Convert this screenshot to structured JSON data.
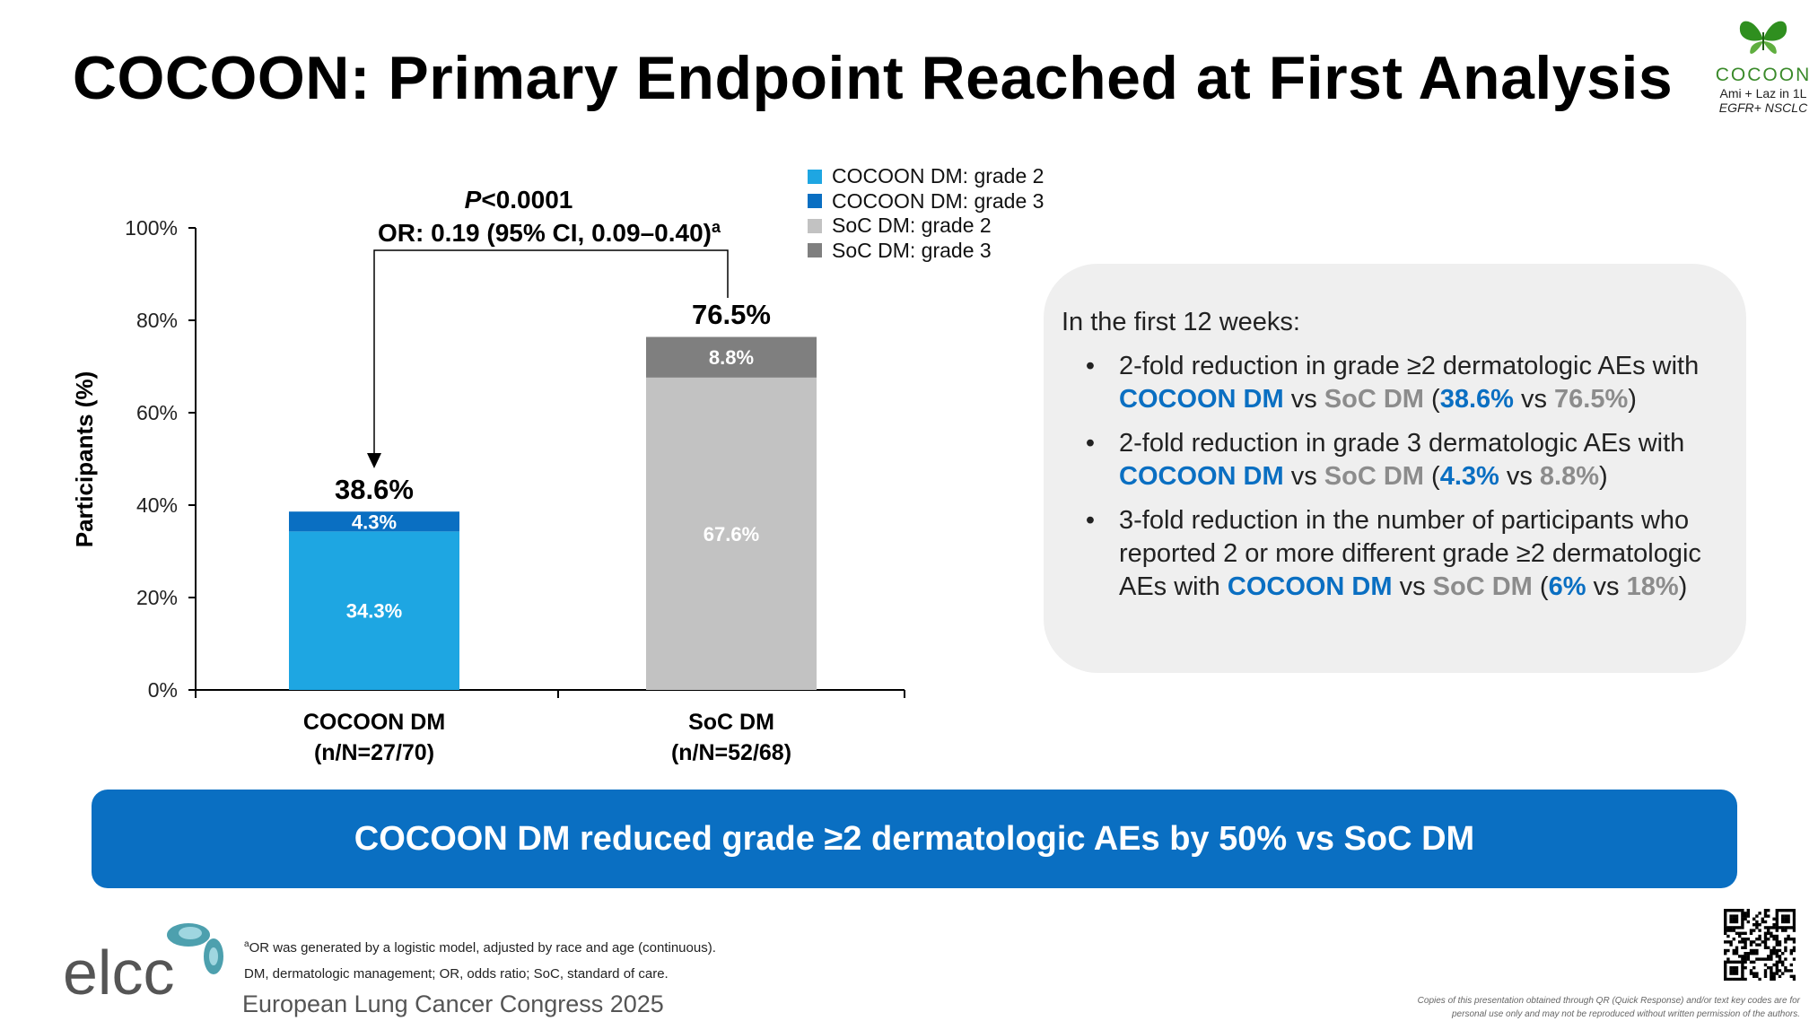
{
  "title": "COCOON: Primary Endpoint Reached at First Analysis",
  "logo": {
    "brand": "COCOON",
    "sub1": "Ami + Laz in 1L",
    "sub2": "EGFR+ NSCLC",
    "leaf_color": "#2f8f1f"
  },
  "chart_data": {
    "type": "bar",
    "stacked": true,
    "categories": [
      "COCOON DM",
      "SoC DM"
    ],
    "category_sublabels": [
      "(n/N=27/70)",
      "(n/N=52/68)"
    ],
    "series": [
      {
        "name": "COCOON DM: grade 2",
        "color": "#1ea6e2",
        "values": [
          34.3,
          null
        ],
        "labels": [
          "34.3%",
          ""
        ]
      },
      {
        "name": "COCOON DM: grade 3",
        "color": "#0a6fc2",
        "values": [
          4.3,
          null
        ],
        "labels": [
          "4.3%",
          ""
        ]
      },
      {
        "name": "SoC DM: grade 2",
        "color": "#c2c2c2",
        "values": [
          null,
          67.6
        ],
        "labels": [
          "",
          "67.6%"
        ]
      },
      {
        "name": "SoC DM: grade 3",
        "color": "#7f7f7f",
        "values": [
          null,
          8.8
        ],
        "labels": [
          "",
          "8.8%"
        ]
      }
    ],
    "totals": [
      38.6,
      76.5
    ],
    "total_labels": [
      "38.6%",
      "76.5%"
    ],
    "ylabel": "Participants (%)",
    "ylim": [
      0,
      100
    ],
    "yticks": [
      0,
      20,
      40,
      60,
      80,
      100
    ],
    "ytick_labels": [
      "0%",
      "20%",
      "40%",
      "60%",
      "80%",
      "100%"
    ],
    "legend_position": "top-right",
    "grid": false,
    "annotation": {
      "p_label": "P",
      "p_value": "<0.0001",
      "or_text": "OR: 0.19 (95% CI, 0.09–0.40)",
      "or_sup": "a"
    }
  },
  "callout": {
    "intro": "In the first 12 weeks:",
    "bullet_symbol": "•",
    "b1": {
      "t1": "2-fold reduction in grade ≥2 dermatologic AEs with ",
      "c1": "COCOON DM",
      "t2": " vs ",
      "c2": "SoC DM",
      "t3": " (",
      "v1": "38.6%",
      "t4": " vs ",
      "v2": "76.5%",
      "t5": ")"
    },
    "b2": {
      "t1": "2-fold reduction in grade 3 dermatologic AEs with ",
      "c1": "COCOON DM",
      "t2": " vs ",
      "c2": "SoC DM",
      "t3": " (",
      "v1": "4.3%",
      "t4": " vs ",
      "v2": "8.8%",
      "t5": ")"
    },
    "b3": {
      "t1": "3-fold reduction in the number of participants who reported 2 or more different grade ≥2 dermatologic AEs with ",
      "c1": "COCOON DM",
      "t2": " vs ",
      "c2": "SoC DM",
      "t3": " (",
      "v1": "6%",
      "t4": " vs ",
      "v2": "18%",
      "t5": ")"
    }
  },
  "banner": "COCOON DM reduced grade ≥2 dermatologic AEs by 50% vs SoC DM",
  "footer": {
    "elcc_logo_text": "elcc",
    "congress": "European Lung Cancer Congress 2025",
    "footnote1_sup": "a",
    "footnote1": "OR was generated by a logistic model, adjusted by race and age (continuous).",
    "footnote2": "DM, dermatologic management; OR, odds ratio; SoC, standard of care.",
    "copyright": "Copies of this presentation obtained through QR (Quick Response) and/or text key codes are for personal use only and may not be reproduced without written permission of the authors."
  },
  "colors": {
    "blue_light": "#1ea6e2",
    "blue_dark": "#0a6fc2",
    "grey_light": "#c2c2c2",
    "grey_dark": "#7f7f7f",
    "callout_bg": "#efefef"
  }
}
